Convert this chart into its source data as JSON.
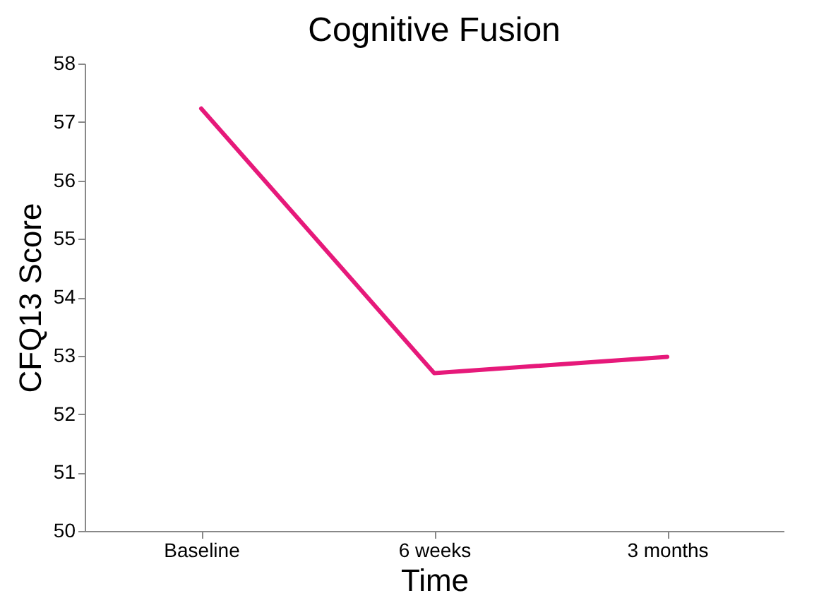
{
  "chart_data": {
    "type": "line",
    "title": "Cognitive Fusion",
    "xlabel": "Time",
    "ylabel": "CFQ13 Score",
    "categories": [
      "Baseline",
      "6 weeks",
      "3 months"
    ],
    "series": [
      {
        "color": "#e6197a",
        "values": [
          57.23,
          52.7,
          52.98
        ]
      }
    ],
    "ylim": [
      50,
      58
    ],
    "yticks": [
      50,
      51,
      52,
      53,
      54,
      55,
      56,
      57,
      58
    ],
    "grid": false,
    "legend": false,
    "marker": "none",
    "line_style": "solid"
  }
}
